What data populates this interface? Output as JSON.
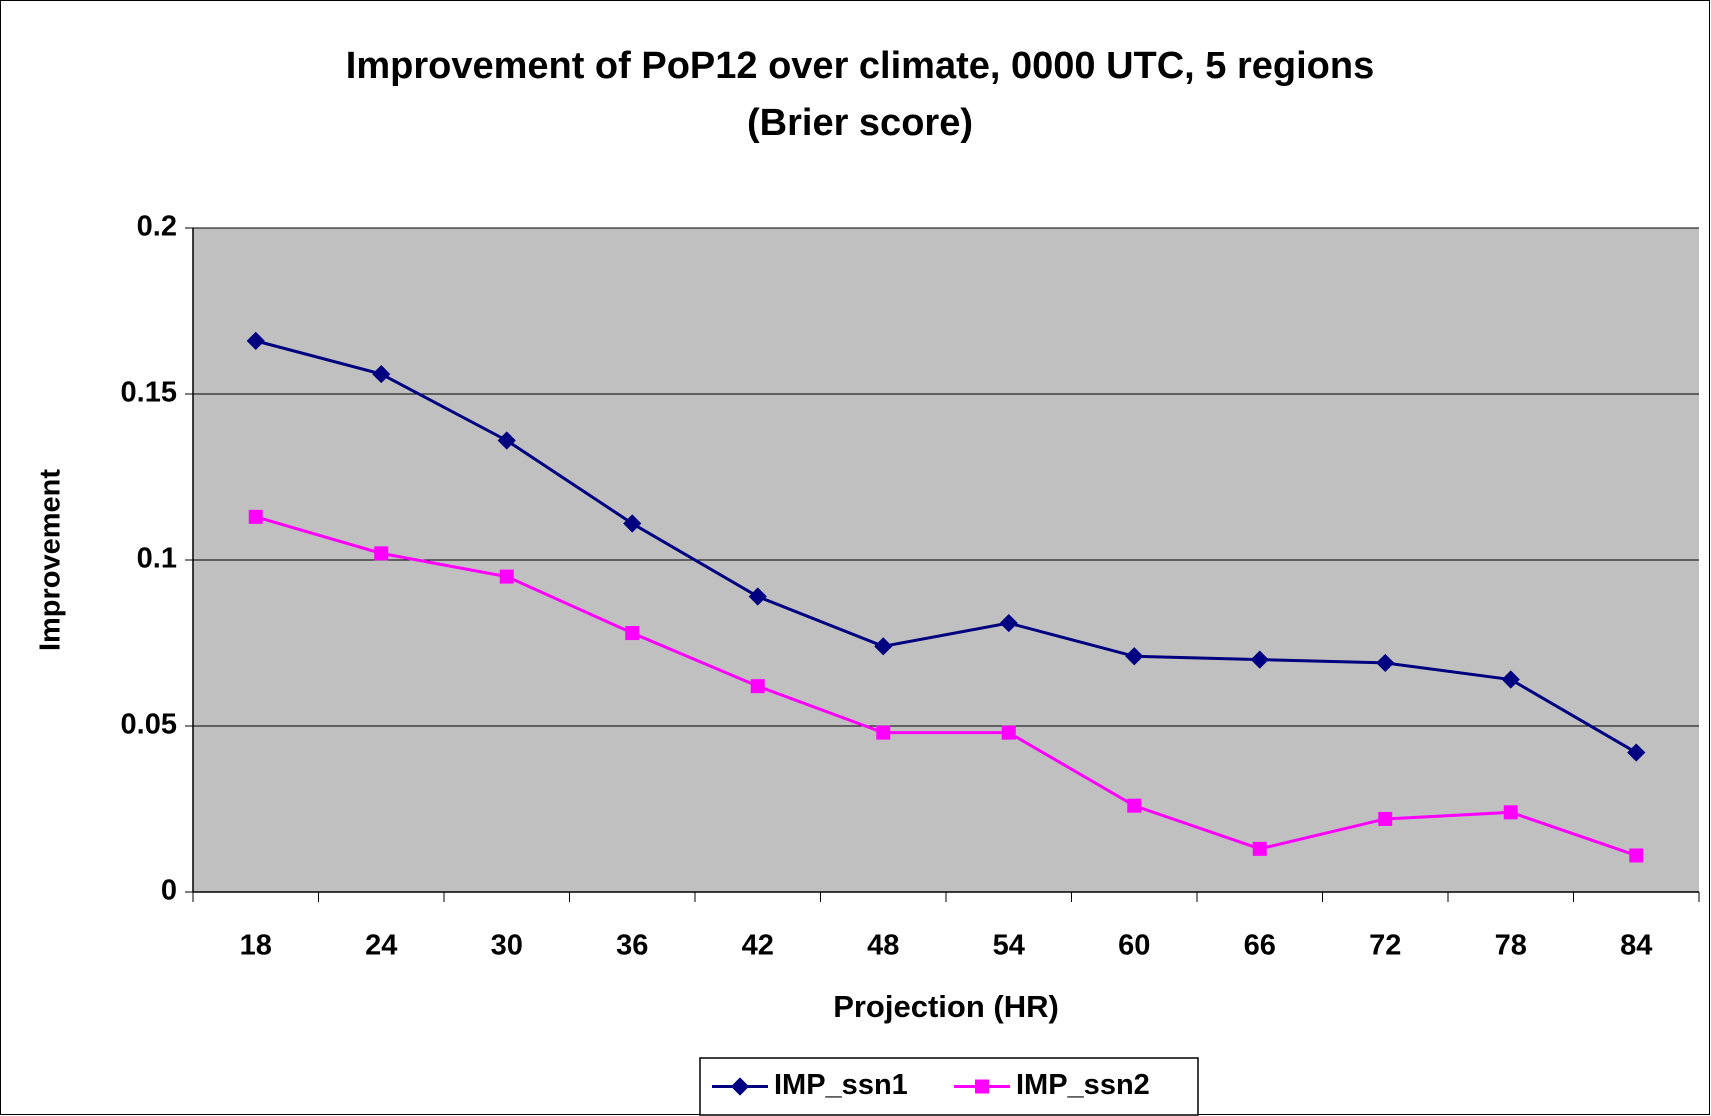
{
  "chart_data": {
    "type": "line",
    "title": "Improvement of PoP12 over climate, 0000 UTC, 5 regions",
    "subtitle": "(Brier score)",
    "x_label": "Projection (HR)",
    "y_label": "Improvement",
    "categories": [
      "18",
      "24",
      "30",
      "36",
      "42",
      "48",
      "54",
      "60",
      "66",
      "72",
      "78",
      "84"
    ],
    "series": [
      {
        "name": "IMP_ssn1",
        "color": "#000080",
        "marker": "diamond",
        "values": [
          0.166,
          0.156,
          0.136,
          0.111,
          0.089,
          0.074,
          0.081,
          0.071,
          0.07,
          0.069,
          0.064,
          0.042
        ]
      },
      {
        "name": "IMP_ssn2",
        "color": "#ff00ff",
        "marker": "square",
        "values": [
          0.113,
          0.102,
          0.095,
          0.078,
          0.062,
          0.048,
          0.048,
          0.026,
          0.013,
          0.022,
          0.024,
          0.011
        ]
      }
    ],
    "ylim": [
      0,
      0.2
    ],
    "yticks": [
      0,
      0.05,
      0.1,
      0.15,
      0.2
    ],
    "grid": true,
    "plot_background": "#c0c0c0",
    "legend": "bottom"
  }
}
